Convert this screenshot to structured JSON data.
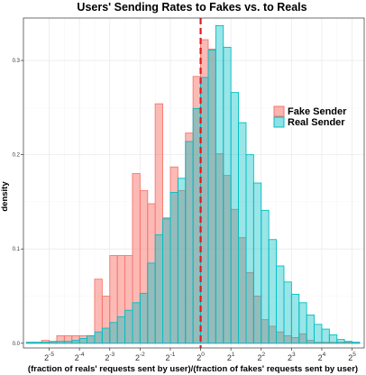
{
  "chart_data": {
    "type": "histogram",
    "title": "Users' Sending Rates to Fakes vs. to Reals",
    "xlabel": "(fraction of reals' requests sent by user)/(fraction of fakes' requests sent by user)",
    "ylabel": "density",
    "x_scale": "log2",
    "xlim_log2": [
      -5.85,
      5.4
    ],
    "ylim": [
      -0.005,
      0.345
    ],
    "x_ticks": [
      {
        "base": "2",
        "exp": "-5",
        "log2": -5
      },
      {
        "base": "2",
        "exp": "-4",
        "log2": -4
      },
      {
        "base": "2",
        "exp": "-3",
        "log2": -3
      },
      {
        "base": "2",
        "exp": "-2",
        "log2": -2
      },
      {
        "base": "2",
        "exp": "-1",
        "log2": -1
      },
      {
        "base": "2",
        "exp": "0",
        "log2": 0
      },
      {
        "base": "2",
        "exp": "1",
        "log2": 1
      },
      {
        "base": "2",
        "exp": "2",
        "log2": 2
      },
      {
        "base": "2",
        "exp": "3",
        "log2": 3
      },
      {
        "base": "2",
        "exp": "4",
        "log2": 4
      },
      {
        "base": "2",
        "exp": "5",
        "log2": 5
      }
    ],
    "y_ticks": [
      "0.0",
      "0.1",
      "0.2",
      "0.3"
    ],
    "y_tick_values": [
      0.0,
      0.1,
      0.2,
      0.3
    ],
    "bin_width_log2": 0.25,
    "bin_start_log2": -5.75,
    "reference_line_log2": 0,
    "grid": true,
    "legend_position": "right",
    "series": [
      {
        "name": "Fake Sender",
        "fill": "#f8766d",
        "stroke": "#f8766d",
        "values": [
          0.001,
          0.001,
          0.003,
          0.001,
          0.008,
          0.008,
          0.008,
          0.008,
          0.008,
          0.068,
          0.05,
          0.093,
          0.093,
          0.093,
          0.18,
          0.162,
          0.148,
          0.254,
          0.133,
          0.187,
          0.162,
          0.223,
          0.283,
          0.322,
          0.312,
          0.201,
          0.178,
          0.142,
          0.112,
          0.075,
          0.05,
          0.025,
          0.018,
          0.012,
          0.008,
          0.006,
          0.01,
          0.003,
          0.001,
          0.001,
          0.001,
          0.001,
          0.001,
          0.001
        ]
      },
      {
        "name": "Real Sender",
        "fill": "#00bfc4",
        "stroke": "#00bfc4",
        "values": [
          0.001,
          0.001,
          0.001,
          0.002,
          0.002,
          0.002,
          0.003,
          0.005,
          0.008,
          0.012,
          0.016,
          0.022,
          0.028,
          0.035,
          0.043,
          0.053,
          0.085,
          0.115,
          0.132,
          0.16,
          0.175,
          0.214,
          0.249,
          0.282,
          0.311,
          0.337,
          0.314,
          0.266,
          0.234,
          0.2,
          0.17,
          0.141,
          0.11,
          0.082,
          0.065,
          0.052,
          0.043,
          0.03,
          0.02,
          0.015,
          0.009,
          0.004,
          0.002,
          0.001
        ]
      }
    ]
  }
}
